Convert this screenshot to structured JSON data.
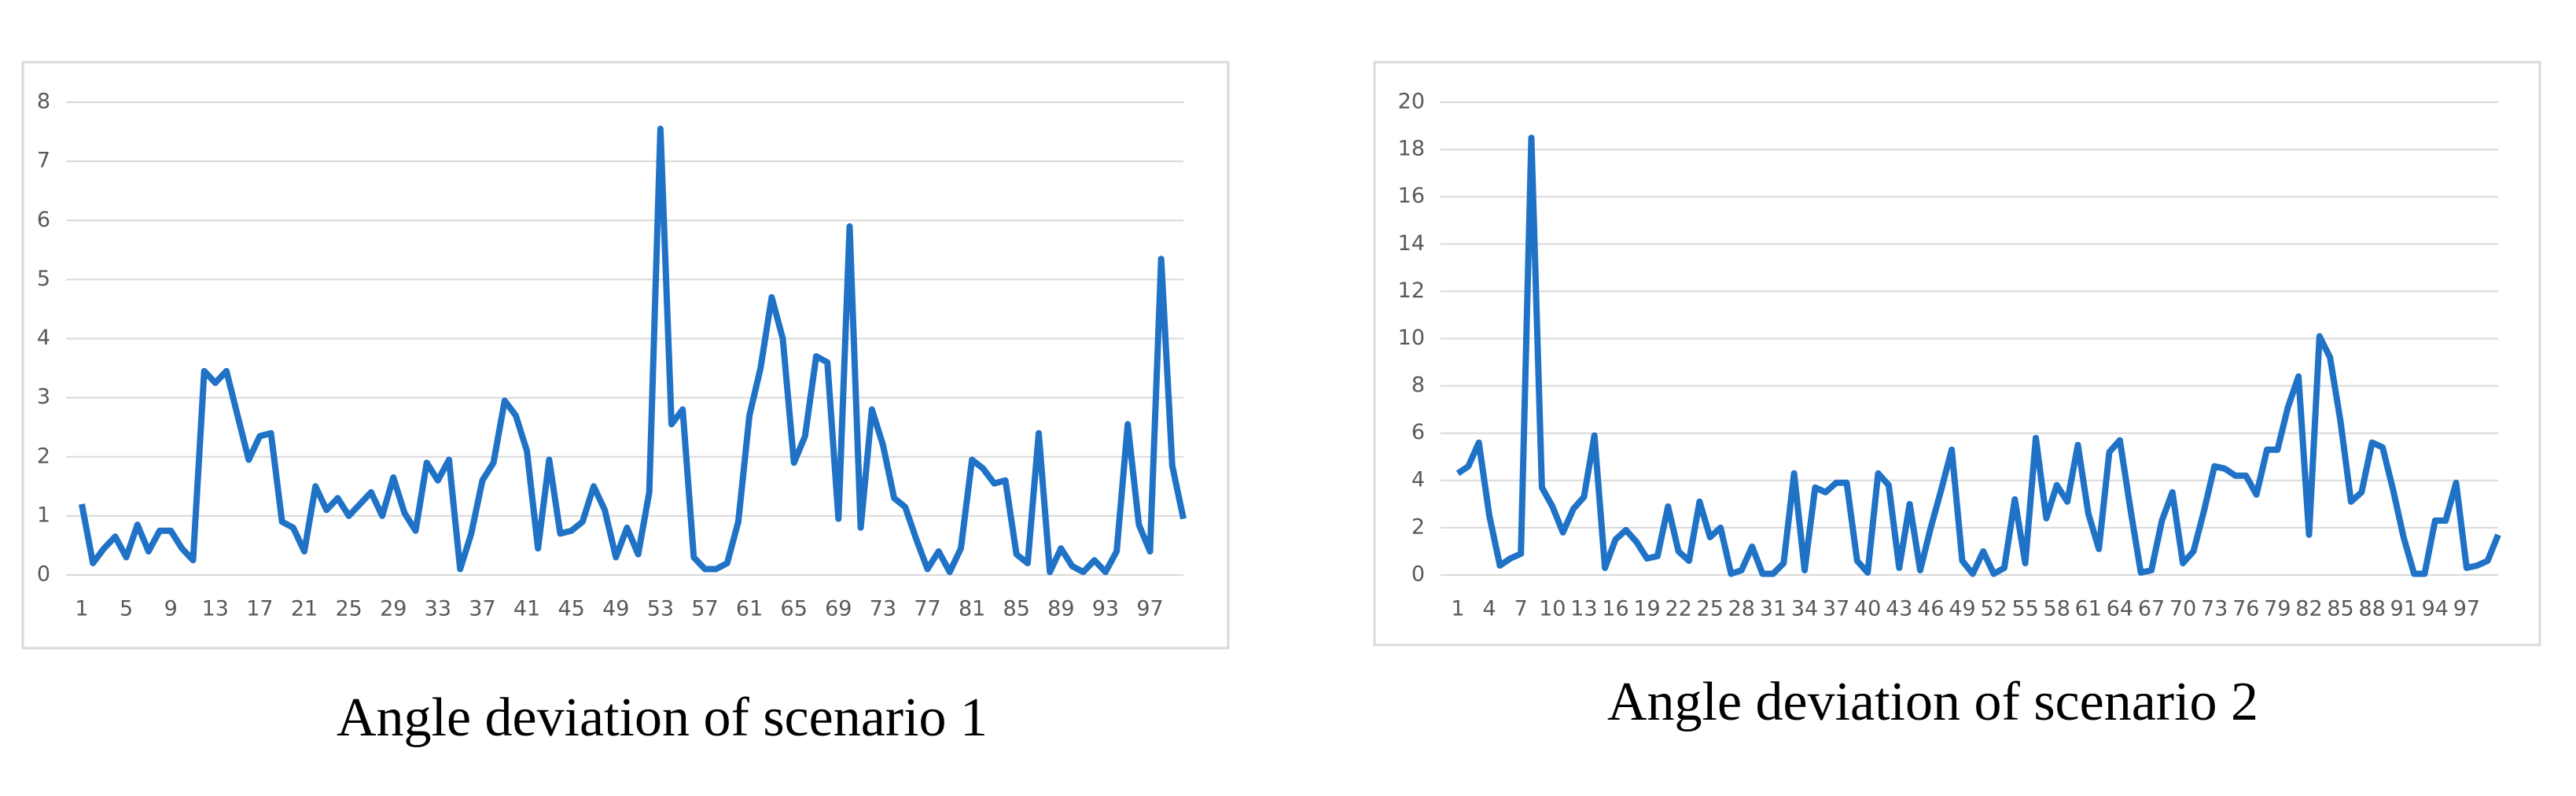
{
  "chart_data": [
    {
      "type": "line",
      "title": "Angle deviation of scenario 1",
      "color": "#1f72c6",
      "grid": true,
      "ylim": [
        0,
        8
      ],
      "yticks": [
        0,
        1,
        2,
        3,
        4,
        5,
        6,
        7,
        8
      ],
      "categories": [
        1,
        null,
        null,
        null,
        5,
        null,
        null,
        null,
        9,
        null,
        null,
        null,
        13,
        null,
        null,
        null,
        17,
        null,
        null,
        null,
        21,
        null,
        null,
        null,
        25,
        null,
        null,
        null,
        29,
        null,
        null,
        null,
        33,
        null,
        null,
        null,
        37,
        null,
        null,
        null,
        41,
        null,
        null,
        null,
        45,
        null,
        null,
        null,
        49,
        null,
        null,
        null,
        53,
        null,
        null,
        null,
        57,
        null,
        null,
        null,
        61,
        null,
        null,
        null,
        65,
        null,
        null,
        null,
        69,
        null,
        null,
        null,
        73,
        null,
        null,
        null,
        77,
        null,
        null,
        null,
        81,
        null,
        null,
        null,
        85,
        null,
        null,
        null,
        89,
        null,
        null,
        null,
        93,
        null,
        null,
        null,
        97,
        null,
        null,
        null
      ],
      "values": [
        1.2,
        0.2,
        0.45,
        0.65,
        0.3,
        0.85,
        0.4,
        0.75,
        0.75,
        0.45,
        0.25,
        3.45,
        3.25,
        3.45,
        2.7,
        1.95,
        2.35,
        2.4,
        0.9,
        0.8,
        0.4,
        1.5,
        1.1,
        1.3,
        1.0,
        1.2,
        1.4,
        1.0,
        1.65,
        1.05,
        0.75,
        1.9,
        1.6,
        1.95,
        0.1,
        0.7,
        1.6,
        1.9,
        2.95,
        2.7,
        2.1,
        0.45,
        1.95,
        0.7,
        0.75,
        0.9,
        1.5,
        1.1,
        0.3,
        0.8,
        0.35,
        1.4,
        7.55,
        2.55,
        2.8,
        0.3,
        0.1,
        0.1,
        0.2,
        0.9,
        2.7,
        3.5,
        4.7,
        4.0,
        1.9,
        2.35,
        3.7,
        3.6,
        0.95,
        5.9,
        0.8,
        2.8,
        2.2,
        1.3,
        1.15,
        0.6,
        0.1,
        0.4,
        0.05,
        0.45,
        1.95,
        1.8,
        1.55,
        1.6,
        0.35,
        0.2,
        2.4,
        0.05,
        0.45,
        0.15,
        0.05,
        0.25,
        0.05,
        0.4,
        2.55,
        0.85,
        0.4,
        5.35,
        1.85,
        0.95
      ]
    },
    {
      "type": "line",
      "title": "Angle deviation of scenario 2",
      "color": "#1f72c6",
      "grid": true,
      "ylim": [
        0,
        20
      ],
      "yticks": [
        0,
        2,
        4,
        6,
        8,
        10,
        12,
        14,
        16,
        18,
        20
      ],
      "categories": [
        1,
        null,
        null,
        4,
        null,
        null,
        7,
        null,
        null,
        10,
        null,
        null,
        13,
        null,
        null,
        16,
        null,
        null,
        19,
        null,
        null,
        22,
        null,
        null,
        25,
        null,
        null,
        28,
        null,
        null,
        31,
        null,
        null,
        34,
        null,
        null,
        37,
        null,
        null,
        40,
        null,
        null,
        43,
        null,
        null,
        46,
        null,
        null,
        49,
        null,
        null,
        52,
        null,
        null,
        55,
        null,
        null,
        58,
        null,
        null,
        61,
        null,
        null,
        64,
        null,
        null,
        67,
        null,
        null,
        70,
        null,
        null,
        73,
        null,
        null,
        76,
        null,
        null,
        79,
        null,
        null,
        82,
        null,
        null,
        85,
        null,
        null,
        88,
        null,
        null,
        91,
        null,
        null,
        94,
        null,
        null,
        97,
        null,
        null,
        null
      ],
      "values": [
        4.3,
        4.6,
        5.6,
        2.5,
        0.4,
        0.7,
        0.9,
        18.5,
        3.7,
        2.9,
        1.8,
        2.8,
        3.3,
        5.9,
        0.3,
        1.5,
        1.9,
        1.4,
        0.7,
        0.8,
        2.9,
        1.0,
        0.6,
        3.1,
        1.6,
        2.0,
        0.05,
        0.2,
        1.2,
        0.05,
        0.05,
        0.5,
        4.3,
        0.2,
        3.7,
        3.5,
        3.9,
        3.9,
        0.6,
        0.1,
        4.3,
        3.8,
        0.3,
        3.0,
        0.2,
        2.0,
        3.6,
        5.3,
        0.6,
        0.05,
        1.0,
        0.05,
        0.3,
        3.2,
        0.5,
        5.8,
        2.4,
        3.8,
        3.1,
        5.5,
        2.6,
        1.1,
        5.2,
        5.7,
        2.8,
        0.1,
        0.2,
        2.3,
        3.5,
        0.5,
        1.0,
        2.7,
        4.6,
        4.5,
        4.2,
        4.2,
        3.4,
        5.3,
        5.3,
        7.1,
        8.4,
        1.7,
        10.1,
        9.2,
        6.5,
        3.1,
        3.5,
        5.6,
        5.4,
        3.6,
        1.6,
        0.05,
        0.05,
        2.3,
        2.3,
        3.9,
        0.3,
        0.4,
        0.6,
        1.7
      ]
    }
  ]
}
